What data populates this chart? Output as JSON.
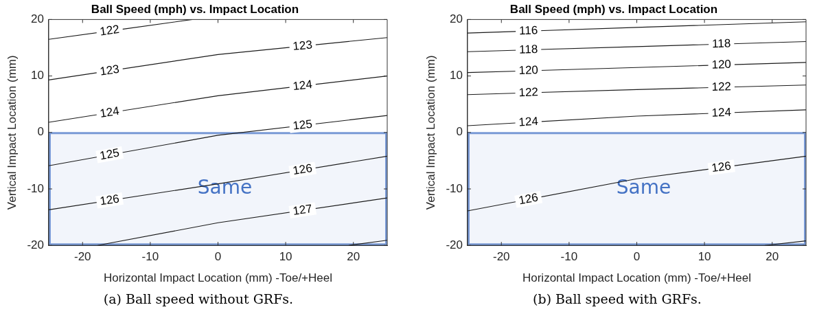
{
  "chart_data": [
    {
      "type": "line",
      "title": "Ball Speed (mph) vs. Impact Location",
      "xlabel": "Horizontal Impact Location (mm) -Toe/+Heel",
      "ylabel": "Vertical Impact Location (mm)",
      "xlim": [
        -25,
        25
      ],
      "ylim": [
        -20,
        20
      ],
      "xticks": [
        -20,
        -10,
        0,
        10,
        20
      ],
      "yticks": [
        -20,
        -10,
        0,
        10,
        20
      ],
      "series": [
        {
          "name": "122",
          "color": "#1a1a1a",
          "x": [
            -25,
            -14,
            -3.8
          ],
          "values": [
            16.5,
            18.3,
            20
          ]
        },
        {
          "name": "123",
          "color": "#1a1a1a",
          "x": [
            -25,
            0,
            25
          ],
          "values": [
            9.3,
            13.8,
            16.8
          ]
        },
        {
          "name": "124",
          "color": "#1a1a1a",
          "x": [
            -25,
            0,
            25
          ],
          "values": [
            1.8,
            6.5,
            10
          ]
        },
        {
          "name": "125",
          "color": "#1a1a1a",
          "x": [
            -25,
            0,
            25
          ],
          "values": [
            -5.9,
            -0.5,
            3
          ]
        },
        {
          "name": "126",
          "color": "#1a1a1a",
          "x": [
            -25,
            0,
            25
          ],
          "values": [
            -13.7,
            -9.1,
            -4.2
          ]
        },
        {
          "name": "127",
          "color": "#1a1a1a",
          "x": [
            -17.8,
            0,
            25
          ],
          "values": [
            -20,
            -16,
            -11.6
          ]
        },
        {
          "color": "#1a1a1a",
          "x": [
            19.3,
            25
          ],
          "values": [
            -20,
            -19.1
          ]
        }
      ],
      "bands": [
        {
          "axis": "y",
          "from": -20,
          "to": 0,
          "label": "Same",
          "color": "#4472c4"
        }
      ],
      "annotations": [
        "(a) Ball speed without GRFs."
      ]
    },
    {
      "type": "line",
      "title": "Ball Speed (mph) vs. Impact Location",
      "xlabel": "Horizontal Impact Location (mm) -Toe/+Heel",
      "ylabel": "Vertical Impact Location (mm)",
      "xlim": [
        -25,
        25
      ],
      "ylim": [
        -20,
        20
      ],
      "xticks": [
        -20,
        -10,
        0,
        10,
        20
      ],
      "yticks": [
        -20,
        -10,
        0,
        10,
        20
      ],
      "series": [
        {
          "name": "116",
          "color": "#1a1a1a",
          "x": [
            -25,
            0,
            25
          ],
          "values": [
            17.6,
            18.6,
            19.6
          ]
        },
        {
          "name": "118",
          "color": "#1a1a1a",
          "x": [
            -25,
            0,
            25
          ],
          "values": [
            14.3,
            15.2,
            16.1
          ]
        },
        {
          "name": "120",
          "color": "#1a1a1a",
          "x": [
            -25,
            0,
            25
          ],
          "values": [
            10.6,
            11.5,
            12.4
          ]
        },
        {
          "name": "122",
          "color": "#1a1a1a",
          "x": [
            -25,
            0,
            25
          ],
          "values": [
            6.7,
            7.6,
            8.4
          ]
        },
        {
          "name": "124",
          "color": "#1a1a1a",
          "x": [
            -25,
            0,
            25
          ],
          "values": [
            1.2,
            2.9,
            4
          ]
        },
        {
          "name": "126",
          "color": "#1a1a1a",
          "x": [
            -25,
            0,
            25
          ],
          "values": [
            -13.9,
            -8.2,
            -4.2
          ]
        },
        {
          "color": "#1a1a1a",
          "x": [
            18.9,
            25
          ],
          "values": [
            -20,
            -19.2
          ]
        }
      ],
      "bands": [
        {
          "axis": "y",
          "from": -20,
          "to": 0,
          "label": "Same",
          "color": "#4472c4"
        }
      ],
      "annotations": [
        "(b) Ball speed with GRFs."
      ]
    }
  ]
}
